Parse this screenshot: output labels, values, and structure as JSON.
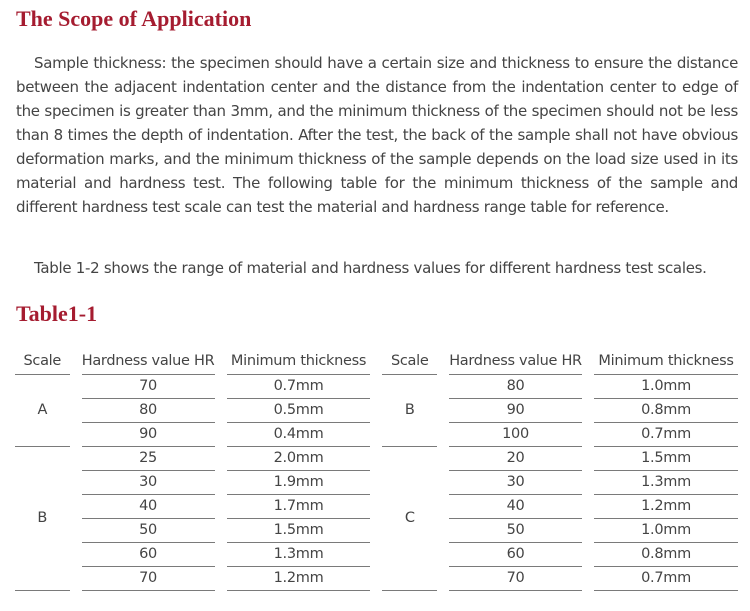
{
  "title": "The Scope of Application",
  "paragraph1": "Sample thickness: the specimen should have a certain size and thickness to ensure the distance between the adjacent indentation center and the distance from the indentation center to edge of the specimen is greater than 3mm, and the minimum thickness of the specimen should not be less than 8 times the depth of indentation. After the test, the back of the sample shall not have obvious deformation marks, and the minimum thickness of the sample depends on the load size used in its material and hardness test. The following table for the minimum thickness of the sample and different hardness test scale can test the material and hardness range table for reference.",
  "paragraph2": "Table 1-2 shows the range of material and hardness values for different hardness test scales.",
  "table_title": "Table1-1",
  "table": {
    "headers": [
      "Scale",
      "Hardness value HR",
      "Minimum  thickness",
      "Scale",
      "Hardness value HR",
      "Minimum  thickness"
    ],
    "left": {
      "groups": [
        {
          "scale": "A",
          "start": 0,
          "span": 3
        },
        {
          "scale": "B",
          "start": 3,
          "span": 6
        }
      ],
      "rows": [
        [
          "70",
          "0.7mm"
        ],
        [
          "80",
          "0.5mm"
        ],
        [
          "90",
          "0.4mm"
        ],
        [
          "25",
          "2.0mm"
        ],
        [
          "30",
          "1.9mm"
        ],
        [
          "40",
          "1.7mm"
        ],
        [
          "50",
          "1.5mm"
        ],
        [
          "60",
          "1.3mm"
        ],
        [
          "70",
          "1.2mm"
        ]
      ]
    },
    "right": {
      "groups": [
        {
          "scale": "B",
          "start": 0,
          "span": 3
        },
        {
          "scale": "C",
          "start": 3,
          "span": 6
        }
      ],
      "rows": [
        [
          "80",
          "1.0mm"
        ],
        [
          "90",
          "0.8mm"
        ],
        [
          "100",
          "0.7mm"
        ],
        [
          "20",
          "1.5mm"
        ],
        [
          "30",
          "1.3mm"
        ],
        [
          "40",
          "1.2mm"
        ],
        [
          "50",
          "1.0mm"
        ],
        [
          "60",
          "0.8mm"
        ],
        [
          "70",
          "0.7mm"
        ]
      ]
    }
  }
}
